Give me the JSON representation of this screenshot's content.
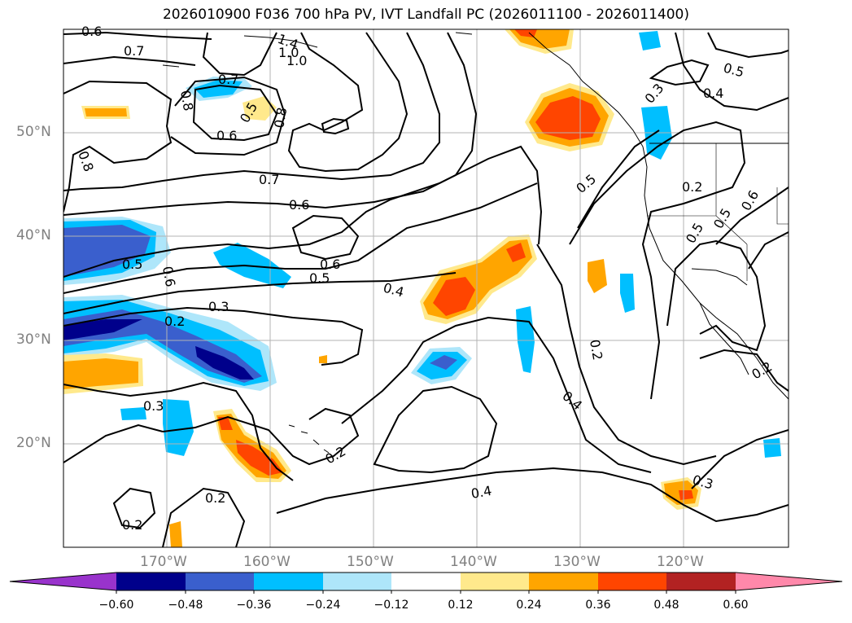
{
  "title": "2026010900 F036 700 hPa PV, IVT Landfall PC (2026011100 - 2026011400)",
  "lat_labels": [
    "50°N",
    "40°N",
    "30°N",
    "20°N"
  ],
  "lon_labels": [
    "170°W",
    "160°W",
    "150°W",
    "140°W",
    "130°W",
    "120°W"
  ],
  "colorbar": {
    "ticks": [
      "−0.60",
      "−0.48",
      "−0.36",
      "−0.24",
      "−0.12",
      "0.12",
      "0.24",
      "0.36",
      "0.48",
      "0.60"
    ],
    "colors": [
      "#9933cc",
      "#00008b",
      "#3a5fcd",
      "#00bfff",
      "#aee6fa",
      "#ffffff",
      "#ffe98c",
      "#ffa500",
      "#ff4500",
      "#b22222",
      "#ff88aa"
    ]
  },
  "contour_labels": [
    "0.6",
    "0.7",
    "1.4",
    "1.0",
    "1.0",
    "0.7",
    "0.8",
    "0.5",
    "0.6",
    "0.8",
    "0.8",
    "0.5",
    "0.4",
    "0.3",
    "0.7",
    "0.6",
    "0.5",
    "0.6",
    "0.5",
    "0.4",
    "0.6",
    "0.5",
    "0.2",
    "0.6",
    "0.5",
    "0.5",
    "0.3",
    "0.2",
    "0.3",
    "0.2",
    "0.2",
    "0.4",
    "0.2",
    "0.4",
    "0.3",
    "0.2",
    "0.2"
  ]
}
